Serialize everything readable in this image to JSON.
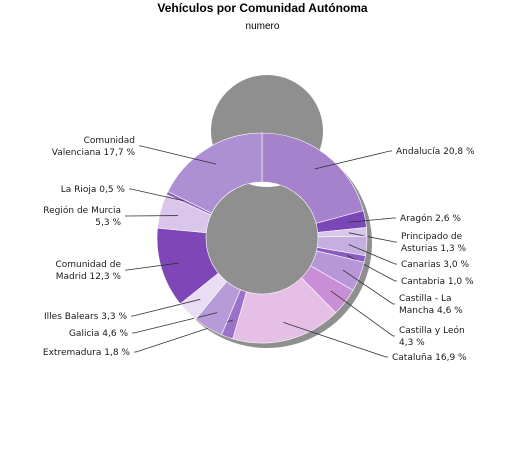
{
  "chart_data": {
    "type": "pie",
    "title": "Vehículos por Comunidad Autónoma",
    "subtitle": "numero",
    "slices": [
      {
        "label": [
          "Andalucía 20,8 %"
        ],
        "value": 20.8,
        "color": "#a682cc"
      },
      {
        "label": [
          "Aragón 2,6 %"
        ],
        "value": 2.6,
        "color": "#7b47b8"
      },
      {
        "label": [
          "Principado de",
          "Asturias 1,3 %"
        ],
        "value": 1.3,
        "color": "#d7c7ea"
      },
      {
        "label": [
          "Canarias 3,0 %"
        ],
        "value": 3.0,
        "color": "#c5afe0"
      },
      {
        "label": [
          "Cantabria 1,0 %"
        ],
        "value": 1.0,
        "color": "#8a5cc2"
      },
      {
        "label": [
          "Castilla - La",
          "Mancha 4,6 %"
        ],
        "value": 4.6,
        "color": "#b797d8"
      },
      {
        "label": [
          "Castilla y León",
          "4,3 %"
        ],
        "value": 4.3,
        "color": "#c98fd6"
      },
      {
        "label": [
          "Cataluña 16,9 %"
        ],
        "value": 16.9,
        "color": "#e5bfe6"
      },
      {
        "label": [
          "Extremadura 1,8 %"
        ],
        "value": 1.8,
        "color": "#9a72c8"
      },
      {
        "label": [
          "Galicia 4,6 %"
        ],
        "value": 4.6,
        "color": "#b99ad9"
      },
      {
        "label": [
          "Illes Balears 3,3 %"
        ],
        "value": 3.3,
        "color": "#e8ddf3"
      },
      {
        "label": [
          "Comunidad de",
          "Madrid 12,3 %"
        ],
        "value": 12.3,
        "color": "#7e46b6"
      },
      {
        "label": [
          "Región de Murcia",
          "5,3 %"
        ],
        "value": 5.3,
        "color": "#d9c6ea"
      },
      {
        "label": [
          "La Rioja 0,5 %"
        ],
        "value": 0.5,
        "color": "#8d63c4"
      },
      {
        "label": [
          "Comunidad",
          "Valenciana 17,7 %"
        ],
        "value": 17.7,
        "color": "#ad8fd3"
      }
    ]
  }
}
